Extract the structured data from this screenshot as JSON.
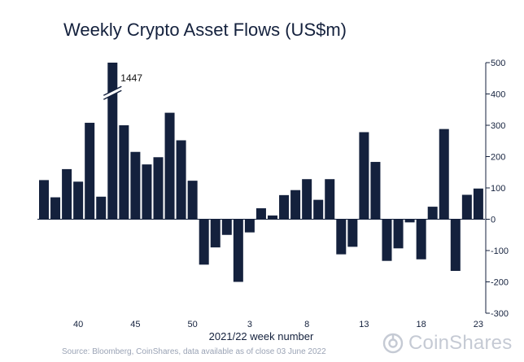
{
  "title": "Weekly Crypto Asset Flows (US$m)",
  "source": "Source: Bloomberg, CoinShares, data available as of close 03 June 2022",
  "brand": "CoinShares",
  "chart_data": {
    "type": "bar",
    "title": "Weekly Crypto Asset Flows (US$m)",
    "xlabel": "2021/22 week number",
    "ylabel": "",
    "ylim": [
      -300,
      500
    ],
    "yticks": [
      500,
      400,
      300,
      200,
      100,
      0,
      -100,
      -200,
      -300
    ],
    "x_tick_labels": [
      {
        "week": "40",
        "index": 3
      },
      {
        "week": "45",
        "index": 8
      },
      {
        "week": "50",
        "index": 13
      },
      {
        "week": "3",
        "index": 18
      },
      {
        "week": "8",
        "index": 23
      },
      {
        "week": "13",
        "index": 28
      },
      {
        "week": "18",
        "index": 33
      },
      {
        "week": "23",
        "index": 38
      }
    ],
    "bar_color": "#14213d",
    "values": [
      125,
      70,
      160,
      120,
      308,
      72,
      1447,
      300,
      215,
      175,
      198,
      340,
      252,
      123,
      -145,
      -90,
      -50,
      -200,
      -42,
      35,
      12,
      77,
      93,
      128,
      62,
      128,
      -112,
      -88,
      278,
      183,
      -133,
      -93,
      -10,
      -128,
      40,
      288,
      -165,
      78,
      98
    ],
    "annotation": {
      "text": "1447",
      "bar_index": 6,
      "axis_break": true
    },
    "grid": false,
    "legend": "none",
    "y_axis_side": "right"
  }
}
